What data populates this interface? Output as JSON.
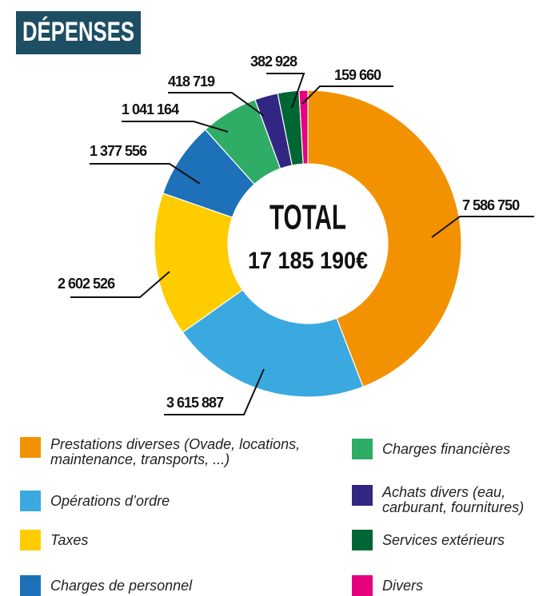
{
  "chart_data": {
    "type": "donut",
    "title": "DÉPENSES",
    "center_title": "TOTAL",
    "center_value": "17 185 190€",
    "categories": [
      "Prestations diverses (Ovade, locations, maintenance, transports, ...)",
      "Opérations d’ordre",
      "Taxes",
      "Charges de personnel",
      "Charges financières",
      "Achats divers (eau, carburant, fournitures)",
      "Services extérieurs",
      "Divers"
    ],
    "values": [
      7586750,
      3615887,
      2602526,
      1377556,
      1041164,
      418719,
      382928,
      159660
    ],
    "value_labels": [
      "7 586 750",
      "3 615 887",
      "2 602 526",
      "1 377 556",
      "1 041 164",
      "418 719",
      "382 928",
      "159 660"
    ],
    "colors": [
      "#f39200",
      "#3aa9e0",
      "#ffcc00",
      "#1d71b8",
      "#2fac66",
      "#312783",
      "#006633",
      "#e6007e"
    ]
  }
}
